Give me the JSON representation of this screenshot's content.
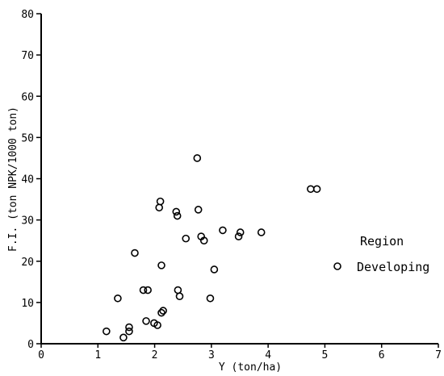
{
  "chart_data": {
    "type": "scatter",
    "title": "",
    "xlabel": "Y (ton/ha)",
    "ylabel": "F.I. (ton NPK/1000 ton)",
    "xlim": [
      0,
      7
    ],
    "ylim": [
      0,
      80
    ],
    "x_ticks": [
      0,
      1,
      2,
      3,
      4,
      5,
      6,
      7
    ],
    "y_ticks": [
      0,
      10,
      20,
      30,
      40,
      50,
      60,
      70,
      80
    ],
    "grid": false,
    "legend_position": "right",
    "legend_title": "Region",
    "colors": {
      "marker": "#000000",
      "axis": "#000000"
    },
    "series": [
      {
        "name": "Developing",
        "marker": "open-circle",
        "x": [
          1.15,
          1.45,
          1.55,
          1.55,
          1.65,
          1.35,
          1.8,
          1.88,
          1.85,
          1.99,
          2.05,
          2.12,
          2.15,
          2.12,
          2.08,
          2.1,
          2.38,
          2.4,
          2.41,
          2.44,
          2.55,
          2.75,
          2.77,
          2.82,
          2.87,
          2.98,
          3.05,
          3.2,
          3.48,
          3.51,
          3.88,
          4.75,
          4.86
        ],
        "y": [
          3.0,
          1.5,
          3.0,
          4.0,
          22.0,
          11.0,
          13.0,
          13.0,
          5.5,
          5.0,
          4.5,
          7.5,
          8.0,
          19.0,
          33.0,
          34.5,
          32.0,
          31.0,
          13.0,
          11.5,
          25.5,
          45.0,
          32.5,
          26.0,
          25.0,
          11.0,
          18.0,
          27.5,
          26.0,
          27.0,
          27.0,
          37.5,
          37.5
        ]
      }
    ]
  }
}
